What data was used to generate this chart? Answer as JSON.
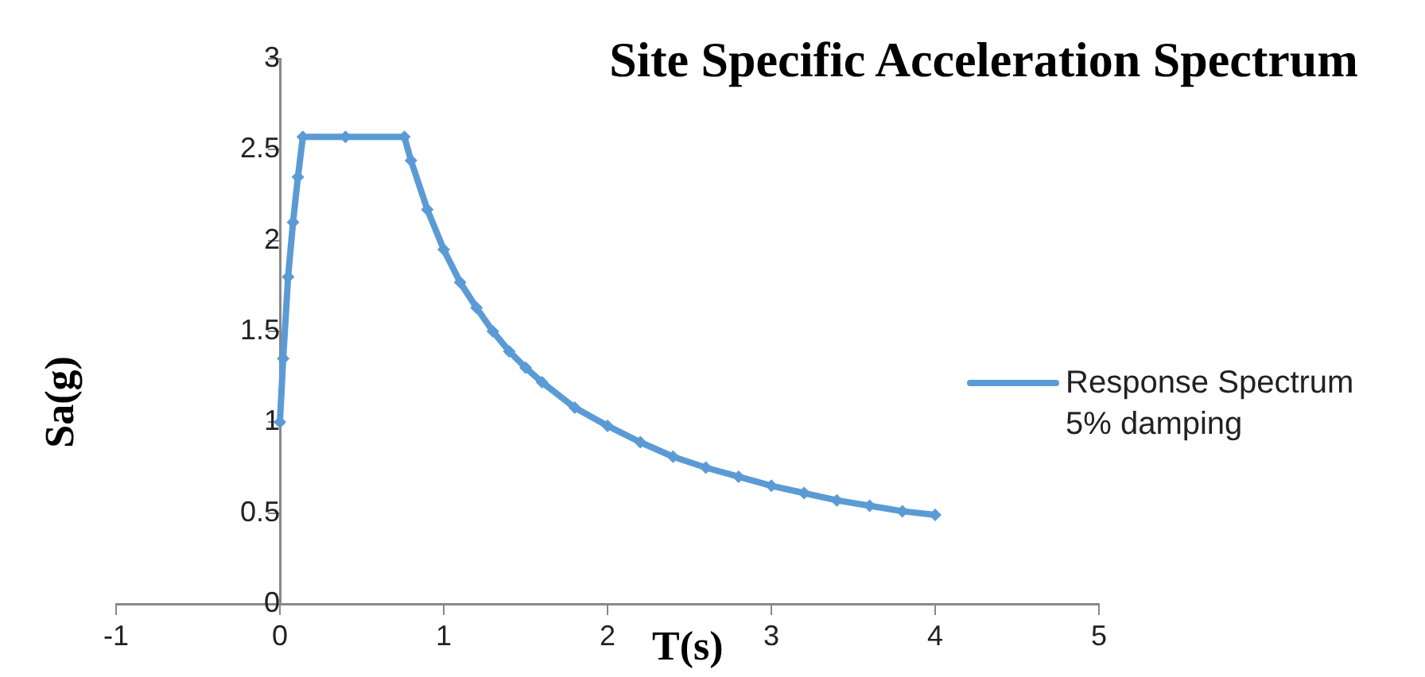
{
  "chart_data": {
    "type": "line",
    "title": "Site Specific Acceleration Spectrum",
    "xlabel": "T(s)",
    "ylabel": "Sa(g)",
    "x": [
      0,
      0.02,
      0.05,
      0.08,
      0.11,
      0.14,
      0.4,
      0.76,
      0.8,
      0.9,
      1.0,
      1.1,
      1.2,
      1.3,
      1.4,
      1.5,
      1.6,
      1.8,
      2.0,
      2.2,
      2.4,
      2.6,
      2.8,
      3.0,
      3.2,
      3.4,
      3.6,
      3.8,
      4.0
    ],
    "series": [
      {
        "name": "Response Spectrum 5% damping",
        "color": "#5b9bd5",
        "values": [
          1.0,
          1.35,
          1.8,
          2.1,
          2.35,
          2.57,
          2.57,
          2.57,
          2.44,
          2.17,
          1.95,
          1.77,
          1.63,
          1.5,
          1.39,
          1.3,
          1.22,
          1.08,
          0.98,
          0.89,
          0.81,
          0.75,
          0.7,
          0.65,
          0.61,
          0.57,
          0.54,
          0.51,
          0.49
        ]
      }
    ],
    "xlim": [
      -1,
      5
    ],
    "xticks": [
      -1,
      0,
      1,
      2,
      3,
      4,
      5
    ],
    "ylim": [
      0,
      3
    ],
    "yticks": [
      0,
      0.5,
      1,
      1.5,
      2,
      2.5,
      3
    ],
    "grid": false,
    "legend": "right",
    "marker": "diamond"
  }
}
